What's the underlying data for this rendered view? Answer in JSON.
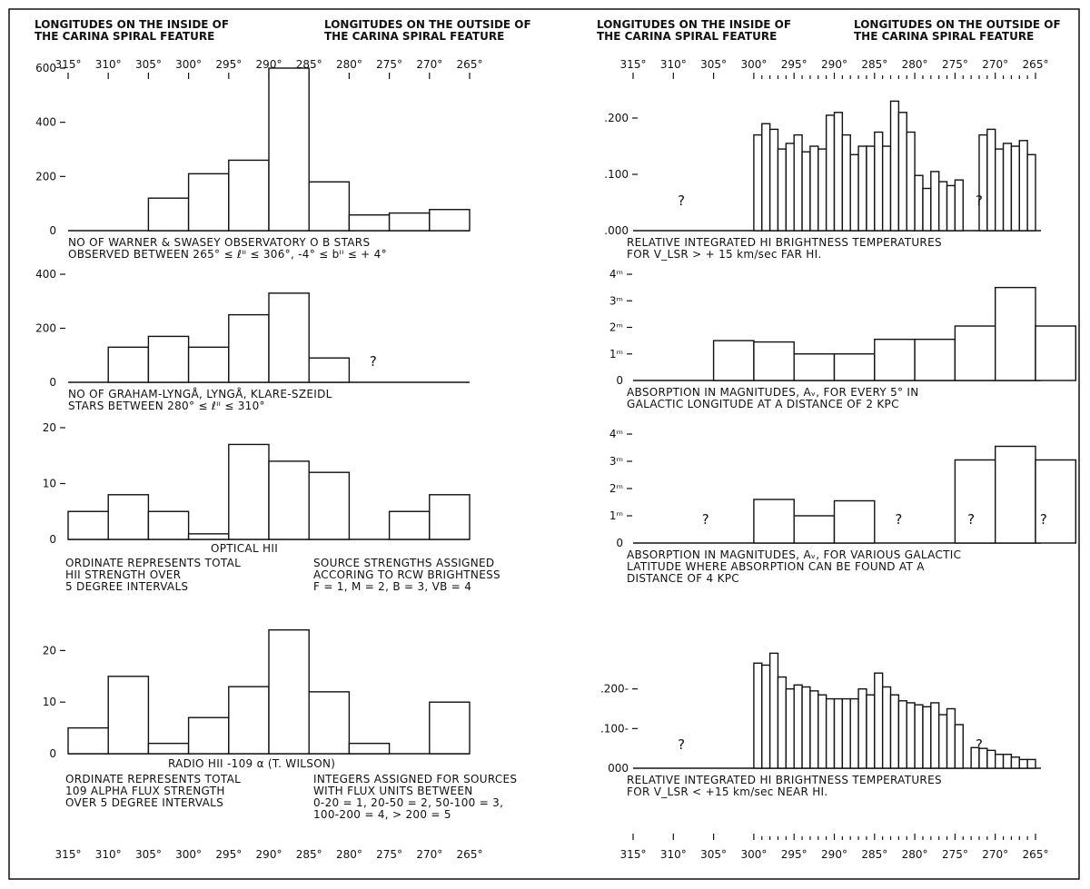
{
  "headers": {
    "inside": [
      "LONGITUDES ON THE INSIDE OF",
      "THE CARINA SPIRAL FEATURE"
    ],
    "outside": [
      "LONGITUDES ON THE OUTSIDE OF",
      "THE CARINA SPIRAL FEATURE"
    ]
  },
  "longitude_labels": [
    "315°",
    "310°",
    "305°",
    "300°",
    "295°",
    "290°",
    "285°",
    "280°",
    "275°",
    "270°",
    "265°"
  ],
  "chart_data": [
    {
      "id": "ob-stars",
      "type": "bar",
      "categories": [
        "305-300",
        "300-295",
        "295-290",
        "290-285",
        "285-280",
        "280-275",
        "275-270",
        "270-265"
      ],
      "values": [
        120,
        210,
        260,
        600,
        180,
        58,
        65,
        78
      ],
      "yticks": [
        "0",
        "200",
        "400",
        "600"
      ],
      "ylim": [
        0,
        600
      ],
      "caption": [
        "NO OF WARNER & SWASEY OBSERVATORY  O B STARS",
        "OBSERVED BETWEEN 265° ≤ ℓᴵᴵ ≤ 306°, -4° ≤ bᴵᴵ ≤ + 4°"
      ]
    },
    {
      "id": "graham-stars",
      "type": "bar",
      "categories": [
        "310-305",
        "305-300",
        "300-295",
        "295-290",
        "290-285",
        "285-280"
      ],
      "values": [
        130,
        170,
        130,
        250,
        330,
        90
      ],
      "yticks": [
        "0",
        "200",
        "400"
      ],
      "ylim": [
        0,
        400
      ],
      "marks": [
        "?"
      ],
      "caption": [
        "NO OF GRAHAM-LYNGÅ, LYNGÅ, KLARE-SZEIDL",
        "STARS BETWEEN 280° ≤ ℓᴵᴵ ≤ 310°"
      ]
    },
    {
      "id": "optical-hii",
      "type": "bar",
      "categories": [
        "315-310",
        "310-305",
        "305-300",
        "300-295",
        "295-290",
        "290-285",
        "285-280",
        "275-270",
        "270-265"
      ],
      "values": [
        5,
        8,
        5,
        1,
        17,
        14,
        12,
        5,
        8
      ],
      "yticks": [
        "0",
        "10",
        "20"
      ],
      "ylim": [
        0,
        20
      ],
      "title": "OPTICAL HII",
      "caption_left": [
        "ORDINATE REPRESENTS TOTAL",
        "HII STRENGTH  OVER",
        "5 DEGREE INTERVALS"
      ],
      "caption_right": [
        "SOURCE STRENGTHS ASSIGNED",
        "ACCORING TO RCW BRIGHTNESS",
        "F = 1, M = 2, B = 3, VB = 4"
      ]
    },
    {
      "id": "radio-hii",
      "type": "bar",
      "categories": [
        "315-310",
        "310-305",
        "305-300",
        "300-295",
        "295-290",
        "290-285",
        "285-280",
        "280-275",
        "270-265"
      ],
      "values": [
        5,
        15,
        2,
        7,
        13,
        24,
        12,
        2,
        10
      ],
      "yticks": [
        "0",
        "10",
        "20"
      ],
      "ylim": [
        0,
        25
      ],
      "title": "RADIO HII -109 α  (T. WILSON)",
      "caption_left": [
        "ORDINATE REPRESENTS TOTAL",
        "109 ALPHA FLUX STRENGTH",
        "OVER 5 DEGREE INTERVALS"
      ],
      "caption_right": [
        "INTEGERS ASSIGNED FOR SOURCES",
        "WITH FLUX UNITS BETWEEN",
        "0-20 = 1, 20-50 = 2, 50-100 = 3,",
        "100-200 = 4, > 200 = 5"
      ]
    },
    {
      "id": "far-hi",
      "type": "bar",
      "x_start": 300,
      "bin_width": 1,
      "values": [
        0.17,
        0.19,
        0.18,
        0.145,
        0.155,
        0.17,
        0.14,
        0.15,
        0.145,
        0.205,
        0.21,
        0.17,
        0.135,
        0.15,
        0.15,
        0.175,
        0.15,
        0.23,
        0.21,
        0.175,
        0.098,
        0.075,
        0.105,
        0.087,
        0.08,
        0.09,
        null,
        null,
        0.17,
        0.18,
        0.145,
        0.155,
        0.15,
        0.16,
        0.135
      ],
      "yticks": [
        ".000",
        ".100",
        ".200"
      ],
      "ylim": [
        0,
        0.25
      ],
      "marks": [
        "?",
        "?"
      ],
      "caption": [
        "RELATIVE  INTEGRATED  HI  BRIGHTNESS  TEMPERATURES",
        "FOR  V_LSR > + 15 km/sec  FAR HI."
      ]
    },
    {
      "id": "absorption-2kpc",
      "type": "bar",
      "categories": [
        "305-300",
        "300-295",
        "295-290",
        "290-285",
        "285-280",
        "280-275",
        "275-270",
        "270-265",
        "265-260"
      ],
      "values": [
        1.5,
        1.45,
        1.0,
        1.0,
        1.55,
        1.55,
        2.05,
        3.5,
        2.05
      ],
      "yticks": [
        "0",
        "1ᵐ",
        "2ᵐ",
        "3ᵐ",
        "4ᵐ"
      ],
      "ylim": [
        0,
        4
      ],
      "caption": [
        "ABSORPTION IN MAGNITUDES, Aᵥ, FOR EVERY 5° IN",
        "GALACTIC LONGITUDE AT A DISTANCE OF 2 KPC"
      ]
    },
    {
      "id": "absorption-4kpc",
      "type": "bar",
      "categories": [
        "300-295",
        "295-290",
        "290-285",
        "275-270",
        "270-265",
        "265-260"
      ],
      "values": [
        1.6,
        1.0,
        1.55,
        3.05,
        3.55,
        3.05
      ],
      "yticks": [
        "0",
        "1ᵐ",
        "2ᵐ",
        "3ᵐ",
        "4ᵐ"
      ],
      "ylim": [
        0,
        4
      ],
      "marks": [
        "?",
        "?",
        "?",
        "?"
      ],
      "caption": [
        "ABSORPTION IN MAGNITUDES, Aᵥ, FOR VARIOUS GALACTIC",
        "LATITUDE WHERE ABSORPTION CAN BE FOUND AT A",
        "DISTANCE OF 4 KPC"
      ]
    },
    {
      "id": "near-hi",
      "type": "bar",
      "x_start": 300,
      "bin_width": 1,
      "values": [
        0.265,
        0.26,
        0.29,
        0.23,
        0.2,
        0.21,
        0.205,
        0.195,
        0.185,
        0.175,
        0.175,
        0.175,
        0.175,
        0.2,
        0.185,
        0.24,
        0.205,
        0.185,
        0.17,
        0.165,
        0.16,
        0.155,
        0.165,
        0.135,
        0.15,
        0.11,
        null,
        0.052,
        0.05,
        0.045,
        0.035,
        0.035,
        0.028,
        0.022,
        0.022
      ],
      "yticks": [
        "000",
        ".100-",
        ".200-"
      ],
      "ylim": [
        0,
        0.3
      ],
      "marks": [
        "?",
        "?"
      ],
      "caption": [
        "RELATIVE  INTEGRATED  HI  BRIGHTNESS  TEMPERATURES",
        "FOR  V_LSR < +15 km/sec  NEAR HI."
      ]
    }
  ]
}
